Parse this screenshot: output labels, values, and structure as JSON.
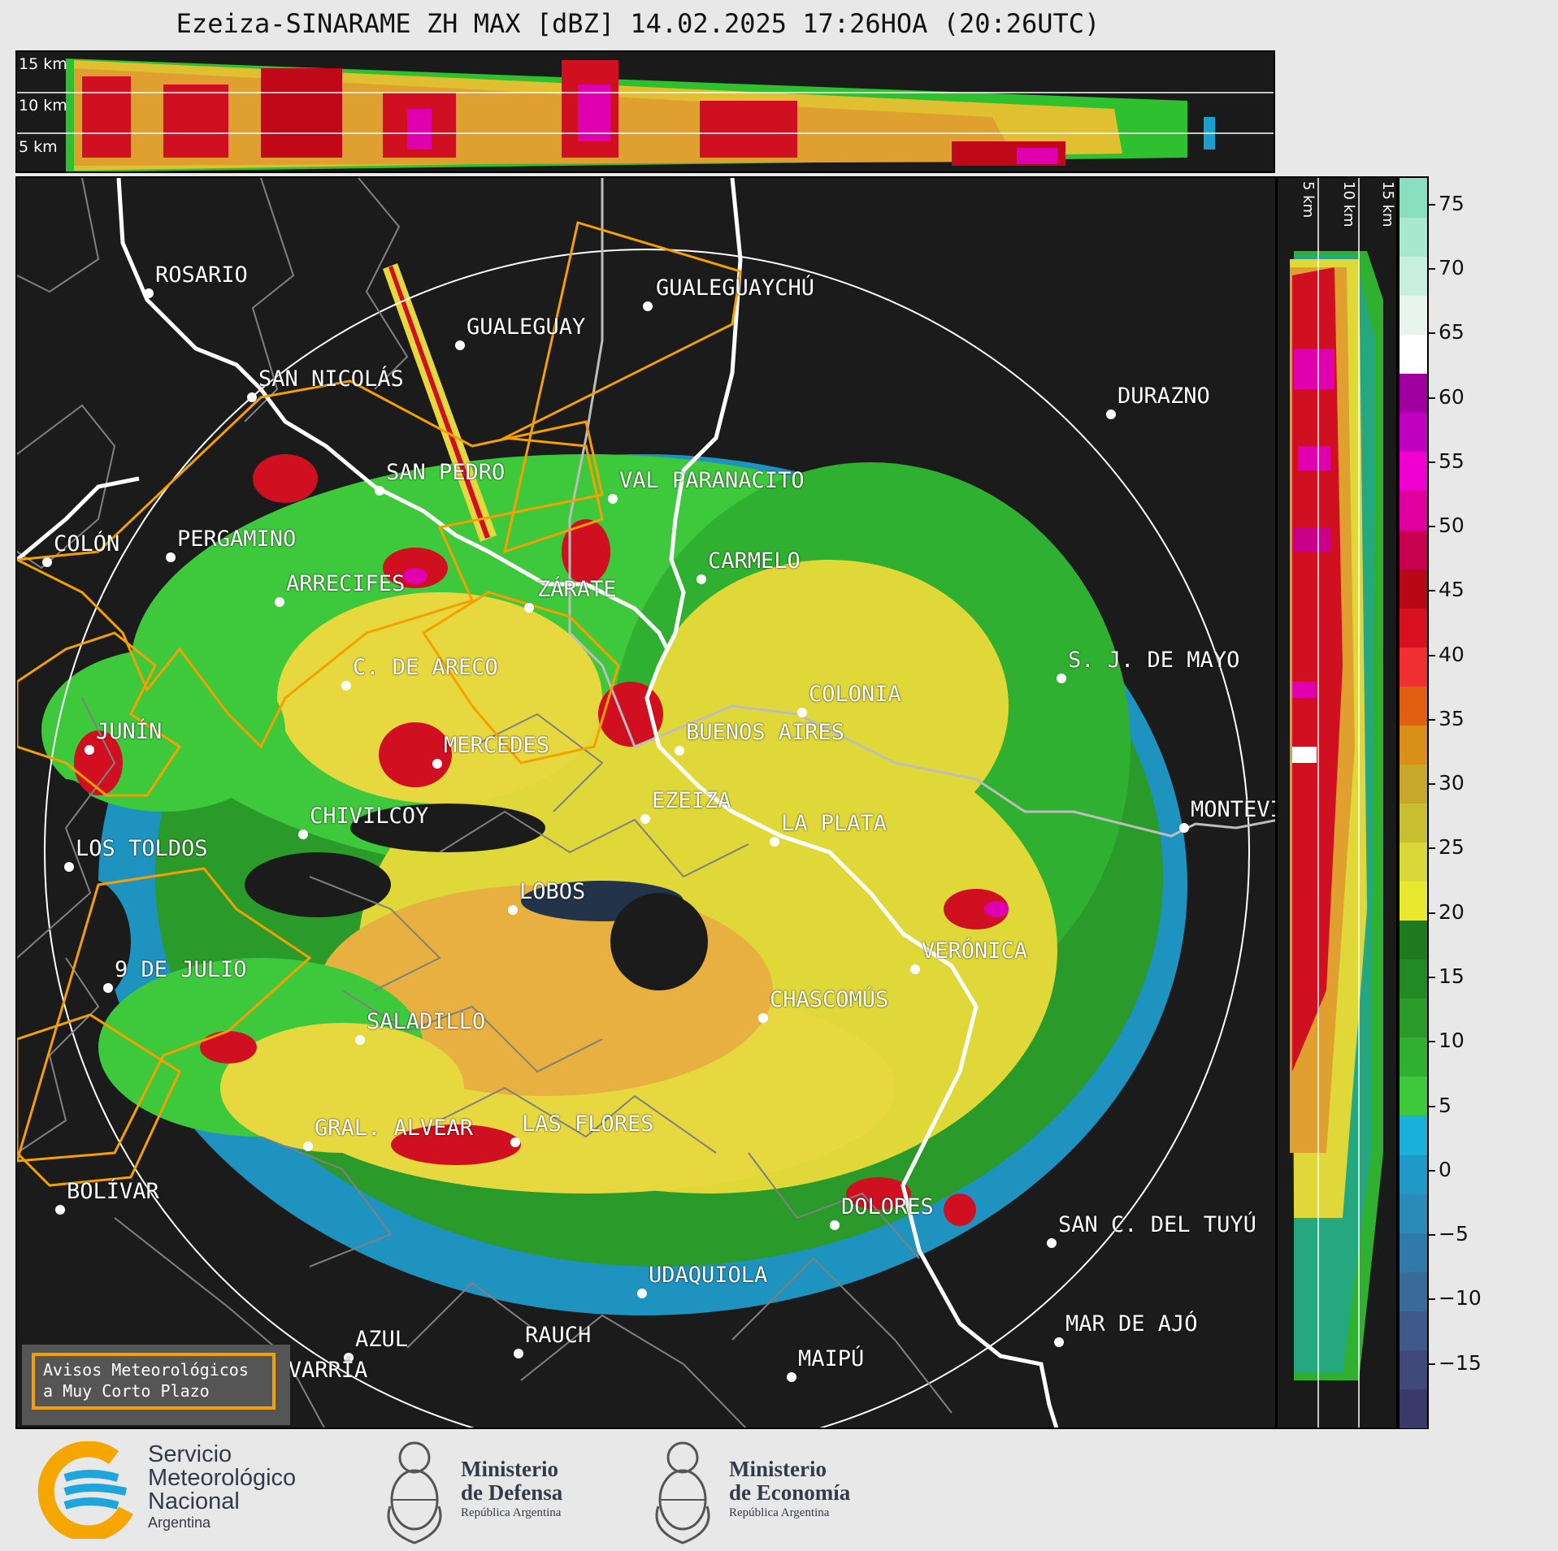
{
  "title": "Ezeiza-SINARAME ZH MAX [dBZ] 14.02.2025 17:26HOA (20:26UTC)",
  "top_strip": {
    "altitude_labels": [
      "15 km",
      "10 km",
      "5 km"
    ]
  },
  "side_strip": {
    "altitude_labels": [
      "5 km",
      "10 km",
      "15 km"
    ]
  },
  "colorbar": {
    "unit": "dBZ",
    "ticks": [
      "75",
      "70",
      "65",
      "60",
      "55",
      "50",
      "45",
      "40",
      "35",
      "30",
      "25",
      "20",
      "15",
      "10",
      "5",
      "0",
      "−5",
      "−10",
      "−15"
    ],
    "range": [
      -20,
      77
    ],
    "colors_bottom_to_top": [
      "#3a3a6a",
      "#3f4a7a",
      "#3d5a8a",
      "#3a6a98",
      "#2f7aa8",
      "#2a8ab8",
      "#1f9ac8",
      "#1ab0dc",
      "#3ec83c",
      "#30b030",
      "#2a9a2a",
      "#228a22",
      "#1e7a1e",
      "#e8e830",
      "#d8d838",
      "#c8c030",
      "#c8a828",
      "#d89018",
      "#e06010",
      "#f03030",
      "#d81020",
      "#b80818",
      "#c80050",
      "#e000a0",
      "#f000d0",
      "#c000c0",
      "#a000a0",
      "#ffffff",
      "#e8f4ee",
      "#c8eee0",
      "#a8e8d0",
      "#88e0c0"
    ]
  },
  "map": {
    "cities": [
      {
        "name": "ROSARIO"
      },
      {
        "name": "GUALEGUAYCHÚ"
      },
      {
        "name": "GUALEGUAY"
      },
      {
        "name": "SAN NICOLÁS"
      },
      {
        "name": "DURAZNO"
      },
      {
        "name": "SAN PEDRO"
      },
      {
        "name": "VAL PARANACITO"
      },
      {
        "name": "COLÓN"
      },
      {
        "name": "PERGAMINO"
      },
      {
        "name": "CARMELO"
      },
      {
        "name": "ARRECIFES"
      },
      {
        "name": "ZÁRATE"
      },
      {
        "name": "S. J. DE MAYO"
      },
      {
        "name": "C. DE ARECO"
      },
      {
        "name": "COLONIA"
      },
      {
        "name": "JUNÍN"
      },
      {
        "name": "BUENOS AIRES"
      },
      {
        "name": "MERCEDES"
      },
      {
        "name": "EZEIZA"
      },
      {
        "name": "MONTEVIDEO"
      },
      {
        "name": "CHIVILCOY"
      },
      {
        "name": "LA PLATA"
      },
      {
        "name": "LOS TOLDOS"
      },
      {
        "name": "LOBOS"
      },
      {
        "name": "VERÓNICA"
      },
      {
        "name": "9 DE JULIO"
      },
      {
        "name": "CHASCOMÚS"
      },
      {
        "name": "SALADILLO"
      },
      {
        "name": "GRAL. ALVEAR"
      },
      {
        "name": "LAS FLORES"
      },
      {
        "name": "BOLÍVAR"
      },
      {
        "name": "DOLORES"
      },
      {
        "name": "SAN C. DEL TUYÚ"
      },
      {
        "name": "UDAQUIOLA"
      },
      {
        "name": "MAR DE AJÓ"
      },
      {
        "name": "AZUL"
      },
      {
        "name": "RAUCH"
      },
      {
        "name": "OLAVARRÍA"
      },
      {
        "name": "MAIPÚ"
      }
    ],
    "warning_box": {
      "line1": "Avisos Meteorológicos",
      "line2": "a Muy Corto Plazo"
    }
  },
  "footer": {
    "smn": {
      "line1": "Servicio",
      "line2": "Meteorológico",
      "line3": "Nacional",
      "line4": "Argentina"
    },
    "defensa": {
      "line1": "Ministerio",
      "line2": "de Defensa",
      "line3": "República Argentina"
    },
    "economia": {
      "line1": "Ministerio",
      "line2": "de Economía",
      "line3": "República Argentina"
    }
  }
}
